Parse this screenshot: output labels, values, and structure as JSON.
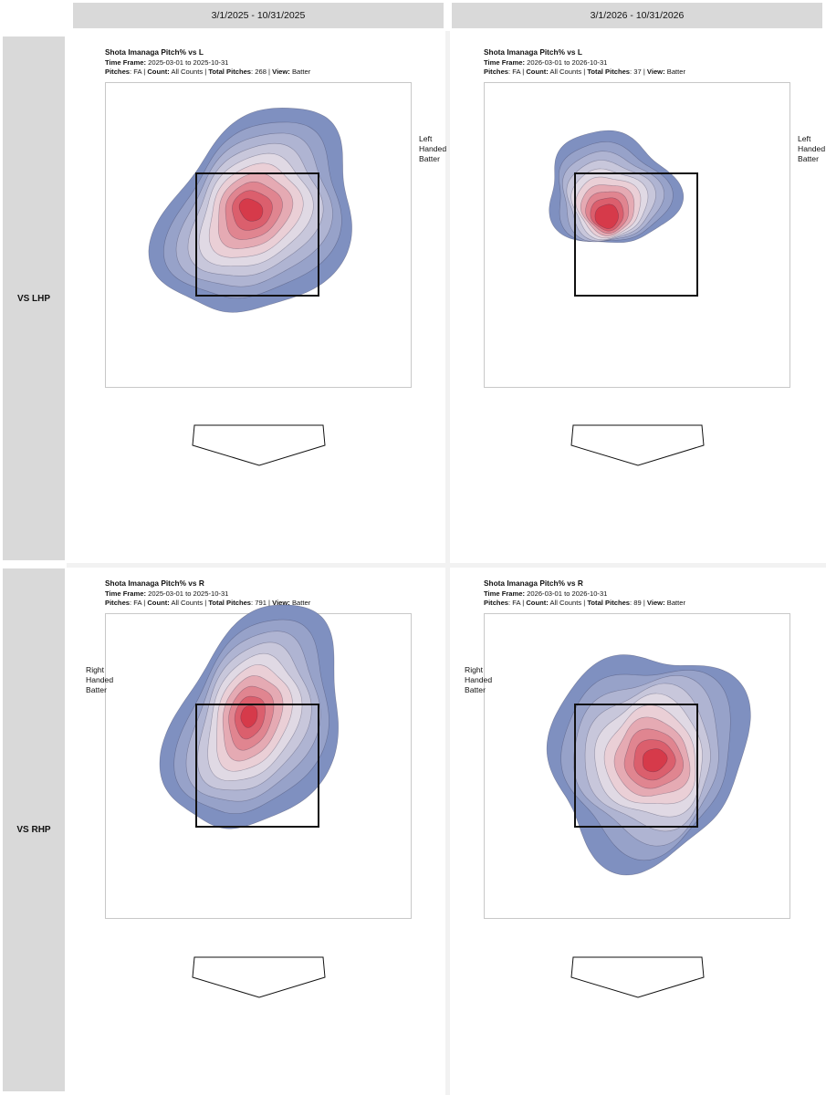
{
  "columns": [
    "3/1/2025 - 10/31/2025",
    "3/1/2026 - 10/31/2026"
  ],
  "rows": [
    "VS LHP",
    "VS RHP"
  ],
  "colors": {
    "low": "#7f90c0",
    "high": "#d63a4a",
    "zone": "#111111",
    "header_bg": "#d9d9d9"
  },
  "panels": [
    {
      "title": "Shota Imanaga Pitch% vs L",
      "time_frame_label": "Time Frame:",
      "time_frame": "2025-03-01 to 2025-10-31",
      "pitches_label": "Pitches",
      "pitches": "FA",
      "count_label": "Count:",
      "count": "All Counts",
      "total_label": "Total Pitches",
      "total": "268",
      "view_label": "View:",
      "view": "Batter",
      "side_label": "Left\nHanded\nBatter",
      "side_position": "right",
      "chart_data": {
        "type": "heatmap",
        "metric": "Pitch%",
        "pitch_type": "FA",
        "batter_hand": "L",
        "hot_spot": "middle-in, upper half of zone",
        "spread": "wide, extends above and to the left of zone"
      }
    },
    {
      "title": "Shota Imanaga Pitch% vs L",
      "time_frame_label": "Time Frame:",
      "time_frame": "2026-03-01 to 2026-10-31",
      "pitches_label": "Pitches",
      "pitches": "FA",
      "count_label": "Count:",
      "count": "All Counts",
      "total_label": "Total Pitches",
      "total": "37",
      "view_label": "View:",
      "view": "Batter",
      "side_label": "Left\nHanded\nBatter",
      "side_position": "right",
      "chart_data": {
        "type": "heatmap",
        "metric": "Pitch%",
        "pitch_type": "FA",
        "batter_hand": "L",
        "hot_spot": "upper-left of zone",
        "spread": "compact, upper half of zone"
      }
    },
    {
      "title": "Shota Imanaga Pitch% vs R",
      "time_frame_label": "Time Frame:",
      "time_frame": "2025-03-01 to 2025-10-31",
      "pitches_label": "Pitches",
      "pitches": "FA",
      "count_label": "Count:",
      "count": "All Counts",
      "total_label": "Total Pitches",
      "total": "791",
      "view_label": "View:",
      "view": "Batter",
      "side_label": "Right\nHanded\nBatter",
      "side_position": "left",
      "chart_data": {
        "type": "heatmap",
        "metric": "Pitch%",
        "pitch_type": "FA",
        "batter_hand": "R",
        "hot_spot": "top-middle of zone",
        "spread": "elongated vertically through middle of zone"
      }
    },
    {
      "title": "Shota Imanaga Pitch% vs R",
      "time_frame_label": "Time Frame:",
      "time_frame": "2026-03-01 to 2026-10-31",
      "pitches_label": "Pitches",
      "pitches": "FA",
      "count_label": "Count:",
      "count": "All Counts",
      "total_label": "Total Pitches",
      "total": "89",
      "view_label": "View:",
      "view": "Batter",
      "side_label": "Right\nHanded\nBatter",
      "side_position": "left",
      "chart_data": {
        "type": "heatmap",
        "metric": "Pitch%",
        "pitch_type": "FA",
        "batter_hand": "R",
        "hot_spot": "middle-right of zone",
        "spread": "wide, extends above zone to the right"
      }
    }
  ]
}
